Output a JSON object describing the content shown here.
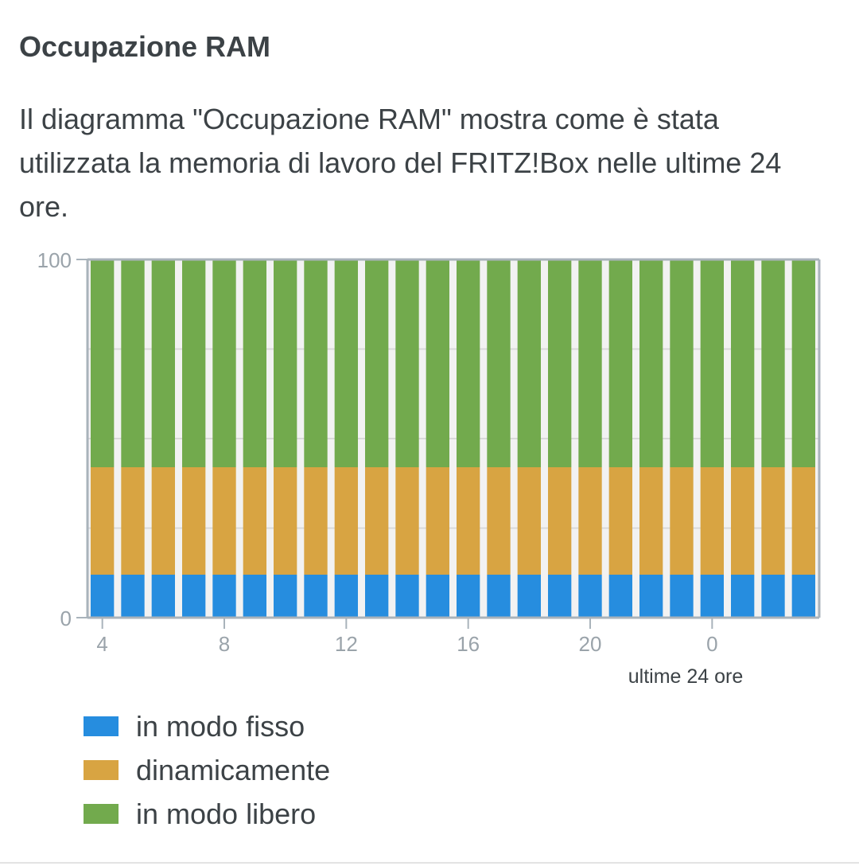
{
  "header": {
    "title": "Occupazione RAM",
    "description": "Il diagramma \"Occupazione RAM\" mostra come è stata utilizzata la memoria di lavoro del FRITZ!Box nelle ultime 24 ore."
  },
  "chart_data": {
    "type": "bar",
    "stacked": true,
    "xlabel": "ultime 24 ore",
    "ylabel": "",
    "ylim": [
      0,
      100
    ],
    "y_tick_labels": [
      "0",
      "100"
    ],
    "x_tick_labels": [
      "4",
      "8",
      "12",
      "16",
      "20",
      "0"
    ],
    "categories": [
      "4",
      "5",
      "6",
      "7",
      "8",
      "9",
      "10",
      "11",
      "12",
      "13",
      "14",
      "15",
      "16",
      "17",
      "18",
      "19",
      "20",
      "21",
      "22",
      "23",
      "0",
      "1",
      "2",
      "3"
    ],
    "series": [
      {
        "name": "in modo fisso",
        "color": "#268ddf",
        "values": [
          12,
          12,
          12,
          12,
          12,
          12,
          12,
          12,
          12,
          12,
          12,
          12,
          12,
          12,
          12,
          12,
          12,
          12,
          12,
          12,
          12,
          12,
          12,
          12
        ]
      },
      {
        "name": "dinamicamente",
        "color": "#d8a442",
        "values": [
          30,
          30,
          30,
          30,
          30,
          30,
          30,
          30,
          30,
          30,
          30,
          30,
          30,
          30,
          30,
          30,
          30,
          30,
          30,
          30,
          30,
          30,
          30,
          30
        ]
      },
      {
        "name": "in modo libero",
        "color": "#72aa4d",
        "values": [
          58,
          58,
          58,
          58,
          58,
          58,
          58,
          58,
          58,
          58,
          58,
          58,
          58,
          58,
          58,
          58,
          58,
          58,
          58,
          58,
          58,
          58,
          58,
          58
        ]
      }
    ],
    "grid": true,
    "legend_position": "bottom-left"
  }
}
